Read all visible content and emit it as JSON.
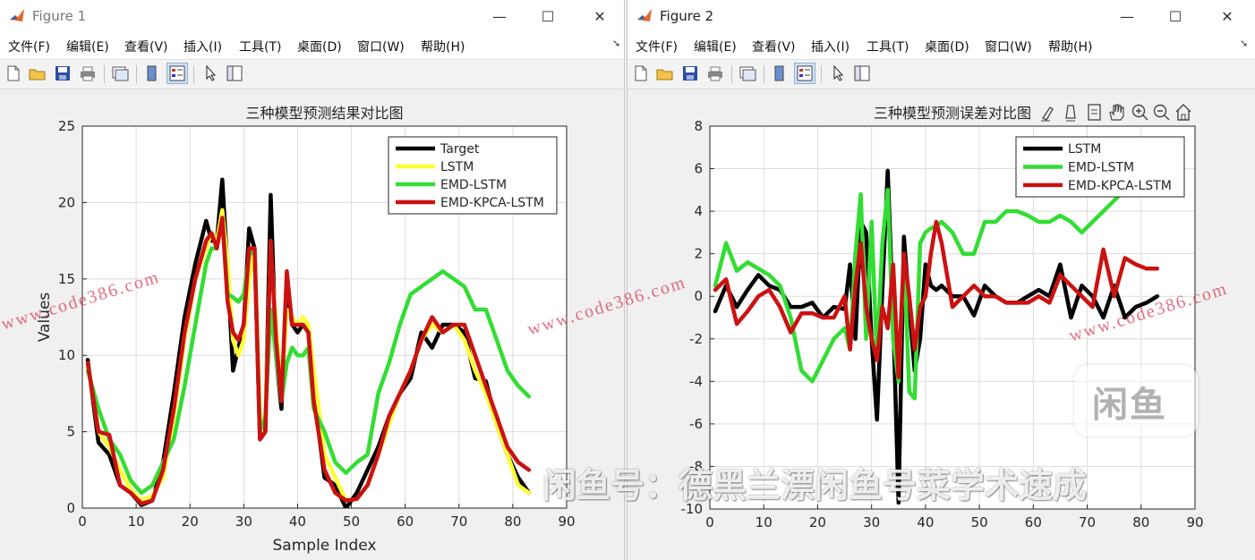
{
  "windows": [
    {
      "title": "Figure 1",
      "menu": [
        "文件(F)",
        "编辑(E)",
        "查看(V)",
        "插入(I)",
        "工具(T)",
        "桌面(D)",
        "窗口(W)",
        "帮助(H)"
      ],
      "controls": {
        "minimize": "—",
        "maximize": "☐",
        "close": "✕"
      },
      "chart_data": {
        "type": "line",
        "title": "三种模型预测结果对比图",
        "xlabel": "Sample Index",
        "ylabel": "Values",
        "xlim": [
          0,
          90
        ],
        "ylim": [
          0,
          25
        ],
        "xticks": [
          "0",
          "10",
          "20",
          "30",
          "40",
          "50",
          "60",
          "70",
          "80",
          "90"
        ],
        "yticks": [
          "0",
          "5",
          "10",
          "15",
          "20",
          "25"
        ],
        "grid": true,
        "legend_position": "top-right",
        "x": [
          1,
          3,
          5,
          7,
          9,
          11,
          13,
          15,
          17,
          19,
          21,
          23,
          24,
          25,
          26,
          27,
          28,
          29,
          30,
          31,
          32,
          33,
          34,
          35,
          36,
          37,
          38,
          39,
          40,
          41,
          42,
          43,
          45,
          47,
          49,
          51,
          53,
          55,
          57,
          59,
          61,
          63,
          65,
          67,
          69,
          71,
          73,
          75,
          77,
          79,
          81,
          83
        ],
        "series": [
          {
            "name": "Target",
            "color": "#000000",
            "values": [
              9.7,
              4.3,
              3.5,
              1.5,
              1.0,
              0.2,
              0.5,
              3.0,
              7.5,
              12.5,
              16.0,
              18.8,
              17.5,
              17.5,
              21.5,
              15.5,
              9.0,
              10.5,
              12.0,
              18.3,
              17.0,
              4.5,
              5.0,
              20.5,
              10.0,
              6.5,
              14.5,
              12.0,
              11.5,
              12.0,
              11.5,
              7.5,
              2.0,
              1.5,
              0.0,
              1.0,
              2.5,
              4.0,
              6.0,
              7.5,
              8.5,
              11.5,
              10.5,
              12.0,
              12.0,
              11.5,
              8.5,
              8.3,
              5.5,
              3.5,
              2.0,
              1.0
            ]
          },
          {
            "name": "LSTM",
            "color": "#ffff33",
            "values": [
              9.5,
              5.0,
              4.0,
              2.5,
              1.2,
              0.5,
              0.8,
              2.0,
              6.0,
              11.0,
              15.0,
              17.0,
              18.0,
              17.5,
              19.5,
              16.0,
              11.0,
              10.0,
              11.0,
              15.0,
              17.0,
              6.0,
              6.0,
              17.0,
              12.0,
              7.5,
              13.0,
              12.5,
              12.0,
              12.5,
              12.0,
              9.0,
              3.5,
              2.0,
              0.5,
              0.6,
              1.5,
              3.5,
              5.5,
              7.5,
              9.0,
              11.0,
              12.0,
              11.5,
              12.0,
              11.0,
              9.0,
              7.5,
              5.5,
              3.5,
              1.5,
              1.0
            ]
          },
          {
            "name": "EMD-LSTM",
            "color": "#33dd33",
            "values": [
              9.0,
              6.5,
              4.5,
              3.5,
              1.8,
              1.0,
              1.5,
              3.0,
              4.5,
              8.0,
              12.0,
              16.0,
              17.0,
              17.0,
              19.0,
              14.0,
              13.8,
              13.5,
              14.0,
              16.5,
              17.0,
              5.0,
              6.0,
              13.0,
              10.0,
              7.0,
              9.5,
              10.5,
              10.0,
              10.0,
              10.5,
              6.5,
              5.0,
              3.0,
              2.3,
              3.0,
              3.5,
              7.5,
              9.5,
              12.0,
              14.0,
              14.5,
              15.0,
              15.5,
              15.0,
              14.5,
              13.0,
              13.0,
              11.0,
              9.0,
              8.0,
              7.3
            ]
          },
          {
            "name": "EMD-KPCA-LSTM",
            "color": "#cc1111",
            "values": [
              9.5,
              5.0,
              4.8,
              1.5,
              1.0,
              0.3,
              0.5,
              2.5,
              6.5,
              11.5,
              15.0,
              17.5,
              18.0,
              17.0,
              19.0,
              13.5,
              11.5,
              11.0,
              12.0,
              17.0,
              17.0,
              4.5,
              5.0,
              17.5,
              11.0,
              7.0,
              15.5,
              12.0,
              12.0,
              12.0,
              11.5,
              7.0,
              2.5,
              1.0,
              0.5,
              0.6,
              1.5,
              3.5,
              6.0,
              7.5,
              9.0,
              11.0,
              12.5,
              11.5,
              12.0,
              12.0,
              10.0,
              8.0,
              6.0,
              4.0,
              3.0,
              2.5
            ]
          }
        ]
      }
    },
    {
      "title": "Figure 2",
      "menu": [
        "文件(F)",
        "编辑(E)",
        "查看(V)",
        "插入(I)",
        "工具(T)",
        "桌面(D)",
        "窗口(W)",
        "帮助(H)"
      ],
      "controls": {
        "minimize": "—",
        "maximize": "☐",
        "close": "✕"
      },
      "chart_data": {
        "type": "line",
        "title": "三种模型预测误差对比图",
        "xlabel": "",
        "ylabel": "",
        "xlim": [
          0,
          90
        ],
        "ylim": [
          -10,
          8
        ],
        "xticks": [
          "0",
          "10",
          "20",
          "30",
          "40",
          "50",
          "60",
          "70",
          "80",
          "90"
        ],
        "yticks": [
          "-10",
          "-8",
          "-6",
          "-4",
          "-2",
          "0",
          "2",
          "4",
          "6",
          "8"
        ],
        "grid": true,
        "legend_position": "top-right",
        "x": [
          1,
          3,
          5,
          7,
          9,
          11,
          13,
          15,
          17,
          19,
          21,
          23,
          25,
          26,
          27,
          28,
          29,
          30,
          31,
          32,
          33,
          34,
          35,
          36,
          37,
          38,
          39,
          40,
          41,
          42,
          43,
          45,
          47,
          49,
          51,
          53,
          55,
          57,
          59,
          61,
          63,
          65,
          67,
          69,
          71,
          73,
          75,
          77,
          79,
          81,
          83
        ],
        "series": [
          {
            "name": "LSTM",
            "color": "#000000",
            "values": [
              -0.7,
              0.5,
              -0.5,
              0.3,
              1.0,
              0.5,
              0.3,
              -0.5,
              -0.5,
              -0.3,
              -1.0,
              -0.5,
              -0.6,
              1.5,
              -2.0,
              3.5,
              3.0,
              -2.0,
              -5.8,
              0.3,
              5.9,
              -1.0,
              -9.7,
              2.8,
              -0.5,
              -3.5,
              -2.0,
              1.5,
              0.5,
              0.3,
              0.5,
              0.0,
              0.0,
              -0.9,
              0.5,
              0.0,
              -0.3,
              -0.3,
              0.0,
              0.3,
              0.0,
              1.5,
              -1.0,
              0.5,
              0.0,
              -1.0,
              0.5,
              -1.0,
              -0.5,
              -0.3,
              0.0
            ]
          },
          {
            "name": "EMD-LSTM",
            "color": "#33dd33",
            "values": [
              0.5,
              2.5,
              1.2,
              1.6,
              1.3,
              1.0,
              0.5,
              -1.0,
              -3.5,
              -4.0,
              -3.0,
              -2.0,
              -1.5,
              -2.5,
              2.0,
              4.8,
              -2.0,
              3.5,
              -3.0,
              2.5,
              5.0,
              -2.0,
              -4.0,
              2.0,
              -4.5,
              -4.8,
              2.5,
              3.0,
              3.2,
              3.3,
              3.5,
              3.0,
              2.0,
              2.0,
              3.5,
              3.5,
              4.0,
              4.0,
              3.8,
              3.5,
              3.5,
              3.8,
              3.5,
              3.0,
              3.5,
              4.0,
              4.5,
              5.0,
              5.5,
              5.5,
              5.0
            ]
          },
          {
            "name": "EMD-KPCA-LSTM",
            "color": "#cc1111",
            "values": [
              0.3,
              0.8,
              -1.3,
              -0.7,
              0.0,
              0.3,
              -0.5,
              -1.7,
              -0.8,
              -0.8,
              -1.0,
              -1.0,
              0.0,
              -2.5,
              0.5,
              2.5,
              -0.5,
              -2.0,
              -3.0,
              -0.5,
              -1.5,
              1.5,
              -3.8,
              2.0,
              0.0,
              -2.5,
              -0.5,
              0.0,
              2.0,
              3.5,
              2.5,
              -0.5,
              0.0,
              0.5,
              0.0,
              0.0,
              -0.3,
              -0.3,
              -0.3,
              0.0,
              -0.3,
              1.0,
              0.5,
              0.0,
              -0.5,
              2.2,
              0.0,
              1.8,
              1.5,
              1.3,
              1.3
            ]
          }
        ]
      }
    }
  ],
  "watermarks": {
    "site": "www.code386.com",
    "xianyu_logo": "闲鱼",
    "xianyu_text": "闲鱼号：德黑兰漂闲鱼号菜学术速成"
  }
}
